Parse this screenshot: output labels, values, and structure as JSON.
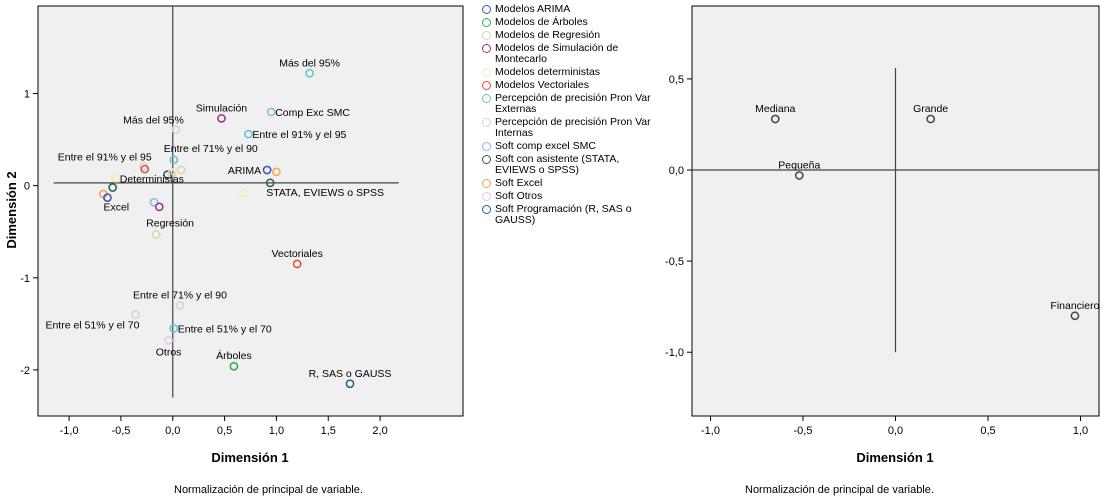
{
  "chart_data": [
    {
      "type": "scatter",
      "xlabel": "Dimensión 1",
      "ylabel": "Dimensión 2",
      "footnote": "Normalización de principal de variable.",
      "xlim": [
        -1.3,
        2.8
      ],
      "ylim": [
        -2.5,
        1.95
      ],
      "xticks": [
        -1.0,
        -0.5,
        0.0,
        0.5,
        1.0,
        1.5,
        2.0
      ],
      "xtick_labels": [
        "-1,0",
        "-0,5",
        "0,0",
        "0,5",
        "1,0",
        "1,5",
        "2,0"
      ],
      "yticks": [
        1,
        0,
        -1,
        -2
      ],
      "ytick_labels": [
        "1",
        "0",
        "-1",
        "-2"
      ],
      "reference_lines": {
        "horizontal": {
          "y": 0.03,
          "x_from": -1.15,
          "x_to": 2.18
        },
        "vertical": {
          "x": 0.0,
          "y_from": -2.3,
          "y_to": 1.95
        }
      },
      "legend": [
        {
          "name": "Modelos ARIMA",
          "color": "#3b4fbf"
        },
        {
          "name": "Modelos de Árboles",
          "color": "#2fae3f"
        },
        {
          "name": "Modelos de Regresión",
          "color": "#d6d9a4"
        },
        {
          "name": "Modelos de Simulación de Montecarlo",
          "color": "#9b2f86"
        },
        {
          "name": "Modelos deterministas",
          "color": "#f4ecb0"
        },
        {
          "name": "Modelos Vectoriales",
          "color": "#e5493b"
        },
        {
          "name": "Percepción de precisión Pron Var Externas",
          "color": "#5cc6d1"
        },
        {
          "name": "Percepción de precisión Pron Var Internas",
          "color": "#d8d0d3"
        },
        {
          "name": "Soft comp excel SMC",
          "color": "#8db5e2"
        },
        {
          "name": "Soft con asistente (STATA, EVIEWS o SPSS)",
          "color": "#25614a"
        },
        {
          "name": "Soft Excel",
          "color": "#f3a24a"
        },
        {
          "name": "Soft Otros",
          "color": "#e8c4ea"
        },
        {
          "name": "Soft Programación (R, SAS o GAUSS)",
          "color": "#1f5f8f"
        }
      ],
      "points": [
        {
          "x": 1.32,
          "y": 1.22,
          "color": "#5cc6d1",
          "label": "Más del 95%",
          "label_pos": "above"
        },
        {
          "x": 0.47,
          "y": 0.73,
          "color": "#9b2f86",
          "label": "Simulación",
          "label_pos": "above"
        },
        {
          "x": 0.95,
          "y": 0.8,
          "color": "#8db5e2",
          "label": "Comp Exc SMC",
          "label_pos": "right"
        },
        {
          "x": 0.03,
          "y": 0.61,
          "color": "#d8d0d3",
          "label": "Más del 95%",
          "label_pos": "aboveleft"
        },
        {
          "x": 0.73,
          "y": 0.56,
          "color": "#5cc6d1",
          "label": "Entre el 91% y el 95",
          "label_pos": "right"
        },
        {
          "x": -0.28,
          "y": 0.21,
          "color": "#d8d0d3",
          "label": "Entre el 91% y el 95",
          "label_pos": "aboveleft"
        },
        {
          "x": 0.01,
          "y": 0.28,
          "color": "#5cc6d1",
          "label": "Entre el 71% y el 90",
          "label_pos": "aboveright"
        },
        {
          "x": -0.27,
          "y": 0.18,
          "color": "#e5493b",
          "label": "",
          "label_pos": "none"
        },
        {
          "x": -0.05,
          "y": 0.12,
          "color": "#25614a",
          "label": "",
          "label_pos": "none"
        },
        {
          "x": 0.02,
          "y": 0.15,
          "color": "#f4ecb0",
          "label": "",
          "label_pos": "none"
        },
        {
          "x": 0.08,
          "y": 0.17,
          "color": "#d6d9a4",
          "label": "",
          "label_pos": "none"
        },
        {
          "x": -0.01,
          "y": 0.13,
          "color": "#d8d0d3",
          "label": "",
          "label_pos": "none"
        },
        {
          "x": -0.55,
          "y": 0.08,
          "color": "#f4ecb0",
          "label": "Deterministas",
          "label_pos": "right"
        },
        {
          "x": 0.91,
          "y": 0.17,
          "color": "#3b4fbf",
          "label": "ARIMA",
          "label_pos": "left"
        },
        {
          "x": 1.0,
          "y": 0.15,
          "color": "#f3a24a",
          "label": "",
          "label_pos": "none"
        },
        {
          "x": 0.94,
          "y": 0.03,
          "color": "#25614a",
          "label": "STATA, EVIEWS o SPSS",
          "label_pos": "belowright"
        },
        {
          "x": 0.68,
          "y": -0.08,
          "color": "#f4ecb0",
          "label": "",
          "label_pos": "none"
        },
        {
          "x": -0.58,
          "y": -0.02,
          "color": "#25614a",
          "label": "",
          "label_pos": "none"
        },
        {
          "x": -0.67,
          "y": -0.09,
          "color": "#f3a24a",
          "label": "",
          "label_pos": "none"
        },
        {
          "x": -0.63,
          "y": -0.13,
          "color": "#3b4fbf",
          "label": "Excel",
          "label_pos": "belowright"
        },
        {
          "x": -0.18,
          "y": -0.18,
          "color": "#8db5e2",
          "label": "",
          "label_pos": "none"
        },
        {
          "x": -0.13,
          "y": -0.23,
          "color": "#9b2f86",
          "label": "",
          "label_pos": "none"
        },
        {
          "x": -0.16,
          "y": -0.53,
          "color": "#d6d9a4",
          "label": "Regresión",
          "label_pos": "aboveright"
        },
        {
          "x": 1.2,
          "y": -0.85,
          "color": "#e5493b",
          "label": "Vectoriales",
          "label_pos": "above"
        },
        {
          "x": 0.07,
          "y": -1.3,
          "color": "#d8d0d3",
          "label": "Entre el 71% y el 90",
          "label_pos": "above"
        },
        {
          "x": -0.36,
          "y": -1.4,
          "color": "#d8d0d3",
          "label": "Entre el 51% y el 70",
          "label_pos": "belowleft"
        },
        {
          "x": 0.01,
          "y": -1.55,
          "color": "#5cc6d1",
          "label": "Entre el 51% y el 70",
          "label_pos": "right"
        },
        {
          "x": -0.04,
          "y": -1.68,
          "color": "#e8c4ea",
          "label": "Otros",
          "label_pos": "below"
        },
        {
          "x": 0.59,
          "y": -1.96,
          "color": "#2fae3f",
          "label": "Árboles",
          "label_pos": "above"
        },
        {
          "x": 1.71,
          "y": -2.15,
          "color": "#1f5f8f",
          "label": "R, SAS o GAUSS",
          "label_pos": "above"
        }
      ]
    },
    {
      "type": "scatter",
      "xlabel": "Dimensión 1",
      "ylabel": "",
      "footnote": "Normalización de principal de variable.",
      "xlim": [
        -1.1,
        1.1
      ],
      "ylim": [
        -1.35,
        0.9
      ],
      "xticks": [
        -1.0,
        -0.5,
        0.0,
        0.5,
        1.0
      ],
      "xtick_labels": [
        "-1,0",
        "-0,5",
        "0,0",
        "0,5",
        "1,0"
      ],
      "yticks": [
        0.5,
        0.0,
        -0.5,
        -1.0
      ],
      "ytick_labels": [
        "0,5",
        "0,0",
        "-0,5",
        "-1,0"
      ],
      "reference_lines": {
        "horizontal": {
          "y": 0.0,
          "x_from": -1.1,
          "x_to": 1.1
        },
        "vertical": {
          "x": 0.0,
          "y_from": -1.0,
          "y_to": 0.56
        }
      },
      "points": [
        {
          "x": -0.65,
          "y": 0.28,
          "color": "#444444",
          "label": "Mediana",
          "label_pos": "above"
        },
        {
          "x": 0.19,
          "y": 0.28,
          "color": "#444444",
          "label": "Grande",
          "label_pos": "above"
        },
        {
          "x": -0.52,
          "y": -0.03,
          "color": "#444444",
          "label": "Pequeña",
          "label_pos": "above"
        },
        {
          "x": 0.97,
          "y": -0.8,
          "color": "#444444",
          "label": "Financiero",
          "label_pos": "above"
        }
      ]
    }
  ]
}
